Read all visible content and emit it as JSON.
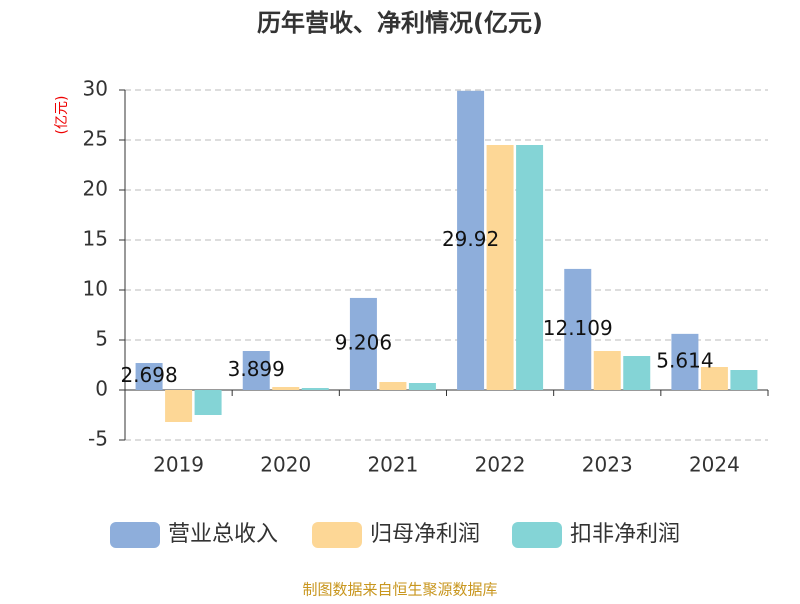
{
  "chart_data": {
    "type": "bar",
    "title": "历年营收、净利情况(亿元)",
    "y_label": "(亿元)",
    "source": "制图数据来自恒生聚源数据库",
    "categories": [
      "2019",
      "2020",
      "2021",
      "2022",
      "2023",
      "2024"
    ],
    "series": [
      {
        "name": "营业总收入",
        "color": "#8eaedb",
        "values": [
          2.698,
          3.899,
          9.206,
          29.92,
          12.109,
          5.614
        ],
        "labels": true
      },
      {
        "name": "归母净利润",
        "color": "#fdd796",
        "values": [
          -3.2,
          0.3,
          0.8,
          24.5,
          3.9,
          2.3
        ],
        "labels": false
      },
      {
        "name": "扣非净利润",
        "color": "#84d4d6",
        "values": [
          -2.5,
          0.2,
          0.7,
          24.5,
          3.4,
          2.0
        ],
        "labels": false
      }
    ],
    "ylim": [
      -5,
      30
    ],
    "yticks": [
      -5,
      0,
      5,
      10,
      15,
      20,
      25,
      30
    ],
    "grid": true,
    "legend": "bottom"
  }
}
